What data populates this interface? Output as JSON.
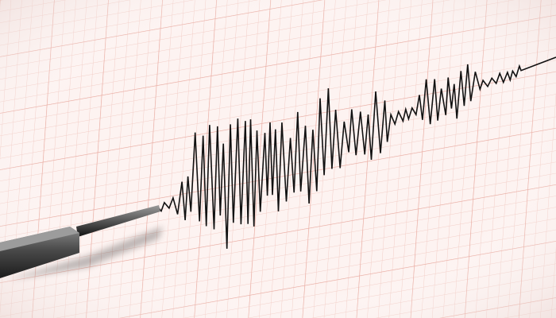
{
  "scene": {
    "subject": "seismograph",
    "colors": {
      "paper": "#fdf3f1",
      "grid_minor": "#f2c9c2",
      "grid_major": "#e8a89e",
      "trace": "#111111",
      "stylus": "#3a3a3a"
    },
    "icons": [
      "seismograph-stylus-icon"
    ]
  }
}
